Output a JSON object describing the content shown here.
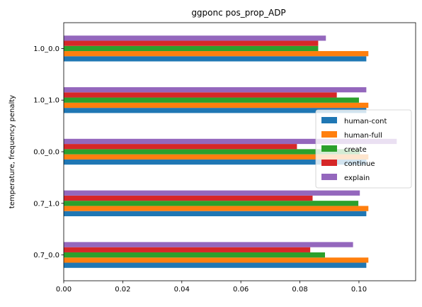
{
  "chart_data": {
    "type": "bar",
    "orientation": "horizontal",
    "title": "ggponc pos_prop_ADP",
    "xlabel": "",
    "ylabel": "temperature, frequency penalty",
    "xlim": [
      0,
      0.1192
    ],
    "xticks": [
      0.0,
      0.02,
      0.04,
      0.06,
      0.08,
      0.1
    ],
    "xtick_labels": [
      "0.00",
      "0.02",
      "0.04",
      "0.06",
      "0.08",
      "0.10"
    ],
    "categories": [
      "0.7_0.0",
      "0.7_1.0",
      "0.0_0.0",
      "1.0_1.0",
      "1.0_0.0"
    ],
    "series": [
      {
        "name": "human-cont",
        "color": "#1f77b4",
        "values": [
          0.1025,
          0.1025,
          0.1025,
          0.1025,
          0.1025
        ]
      },
      {
        "name": "human-full",
        "color": "#ff7f0e",
        "values": [
          0.1032,
          0.1032,
          0.1032,
          0.1032,
          0.1032
        ]
      },
      {
        "name": "create",
        "color": "#2ca02c",
        "values": [
          0.0885,
          0.0998,
          0.1003,
          0.1,
          0.0862
        ]
      },
      {
        "name": "continue",
        "color": "#d62728",
        "values": [
          0.0835,
          0.0843,
          0.079,
          0.0925,
          0.0862
        ]
      },
      {
        "name": "explain",
        "color": "#9467bd",
        "values": [
          0.098,
          0.1003,
          0.1128,
          0.1025,
          0.0888
        ]
      }
    ],
    "grid": false,
    "legend_position": "center-right"
  }
}
